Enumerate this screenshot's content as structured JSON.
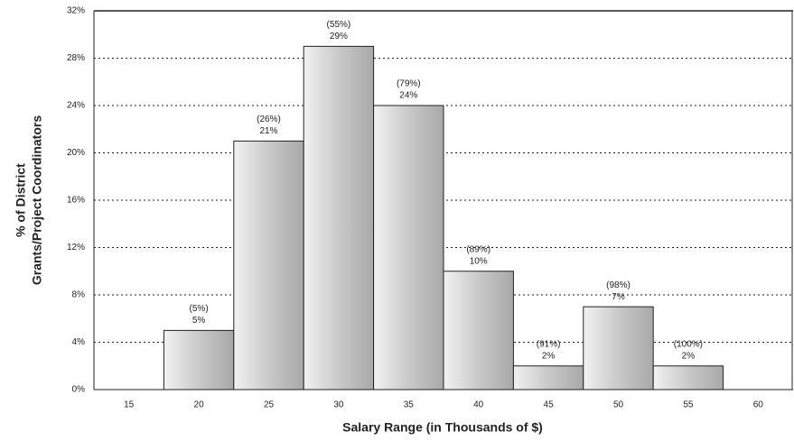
{
  "chart_data": {
    "type": "bar",
    "x_label": "Salary Range (in Thousands of $)",
    "y_label": [
      "% of District",
      "Grants/Project Coordinators"
    ],
    "categories": [
      "15",
      "20",
      "25",
      "30",
      "35",
      "40",
      "45",
      "50",
      "55",
      "60"
    ],
    "values": [
      null,
      5,
      21,
      29,
      24,
      10,
      2,
      7,
      2,
      null
    ],
    "value_labels": [
      null,
      "5%",
      "21%",
      "29%",
      "24%",
      "10%",
      "2%",
      "7%",
      "2%",
      null
    ],
    "cumulative_labels": [
      null,
      "(5%)",
      "(26%)",
      "(55%)",
      "(79%)",
      "(89%)",
      "(91%)",
      "(98%)",
      "(100%)",
      null
    ],
    "color": "#c8c8c8",
    "ylim": [
      0,
      32
    ],
    "yticks": [
      {
        "value": 0,
        "label": "0%"
      },
      {
        "value": 4,
        "label": "4%"
      },
      {
        "value": 8,
        "label": "8%"
      },
      {
        "value": 12,
        "label": "12%"
      },
      {
        "value": 16,
        "label": "16%"
      },
      {
        "value": 20,
        "label": "20%"
      },
      {
        "value": 24,
        "label": "24%"
      },
      {
        "value": 28,
        "label": "28%"
      },
      {
        "value": 32,
        "label": "32%"
      }
    ],
    "grid": true
  }
}
